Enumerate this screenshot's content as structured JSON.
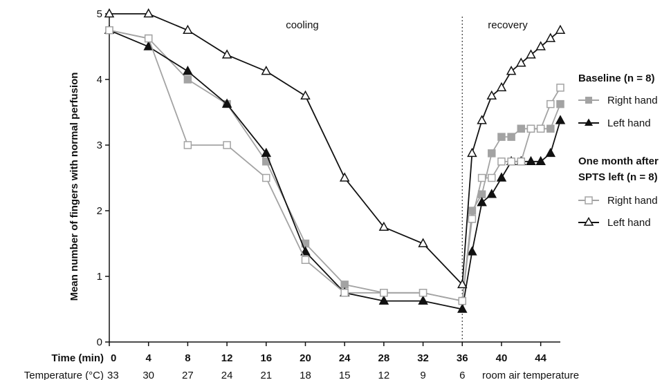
{
  "chart_data": {
    "type": "line",
    "ylabel": "Mean number of fingers with normal perfusion",
    "xlabel": "Time (min)",
    "temperature_row_label": "Temperature (°C)",
    "ylim": [
      0,
      5
    ],
    "yticks": [
      0,
      1,
      2,
      3,
      4,
      5
    ],
    "xticks": [
      0,
      4,
      8,
      12,
      16,
      20,
      24,
      28,
      32,
      36,
      40,
      44
    ],
    "temperature_ticks": [
      {
        "x": 0,
        "label": "33"
      },
      {
        "x": 4,
        "label": "30"
      },
      {
        "x": 8,
        "label": "27"
      },
      {
        "x": 12,
        "label": "24"
      },
      {
        "x": 16,
        "label": "21"
      },
      {
        "x": 20,
        "label": "18"
      },
      {
        "x": 24,
        "label": "15"
      },
      {
        "x": 28,
        "label": "12"
      },
      {
        "x": 32,
        "label": "9"
      },
      {
        "x": 36,
        "label": "6"
      }
    ],
    "temperature_recovery_label": "room air temperature",
    "phase_labels": {
      "cooling": "cooling",
      "recovery": "recovery"
    },
    "phase_divider_x": 36,
    "legend": {
      "group1_title": "Baseline (n = 8)",
      "group2_title_line1": "One month after",
      "group2_title_line2": "SPTS left (n = 8)",
      "right_hand": "Right hand",
      "left_hand": "Left hand"
    },
    "colors": {
      "gray": "#a3a3a3",
      "black": "#111111"
    },
    "series": [
      {
        "name": "Right hand",
        "group": "Baseline",
        "marker": "square-filled",
        "color": "#a3a3a3",
        "x": [
          0,
          4,
          8,
          12,
          16,
          20,
          24,
          28,
          32,
          36,
          37,
          38,
          39,
          40,
          41,
          42,
          43,
          44,
          45,
          46
        ],
        "y": [
          4.75,
          4.625,
          4.0,
          3.625,
          2.75,
          1.5,
          0.875,
          0.75,
          0.75,
          0.625,
          2.0,
          2.25,
          2.875,
          3.125,
          3.125,
          3.25,
          3.25,
          3.25,
          3.25,
          3.625
        ]
      },
      {
        "name": "Left hand",
        "group": "Baseline",
        "marker": "triangle-filled",
        "color": "#111111",
        "x": [
          0,
          4,
          8,
          12,
          16,
          20,
          24,
          28,
          32,
          36,
          37,
          38,
          39,
          40,
          41,
          42,
          43,
          44,
          45,
          46
        ],
        "y": [
          4.75,
          4.5,
          4.125,
          3.625,
          2.875,
          1.375,
          0.75,
          0.625,
          0.625,
          0.5,
          1.375,
          2.125,
          2.25,
          2.5,
          2.75,
          2.75,
          2.75,
          2.75,
          2.875,
          3.375
        ]
      },
      {
        "name": "Right hand",
        "group": "One month after SPTS left",
        "marker": "square-open",
        "color": "#a3a3a3",
        "x": [
          0,
          4,
          8,
          12,
          16,
          20,
          24,
          28,
          32,
          36,
          37,
          38,
          39,
          40,
          41,
          42,
          43,
          44,
          45,
          46
        ],
        "y": [
          4.75,
          4.625,
          3.0,
          3.0,
          2.5,
          1.25,
          0.75,
          0.75,
          0.75,
          0.625,
          1.875,
          2.5,
          2.5,
          2.75,
          2.75,
          2.75,
          3.25,
          3.25,
          3.625,
          3.875
        ]
      },
      {
        "name": "Left hand",
        "group": "One month after SPTS left",
        "marker": "triangle-open",
        "color": "#111111",
        "x": [
          0,
          4,
          8,
          12,
          16,
          20,
          24,
          28,
          32,
          36,
          37,
          38,
          39,
          40,
          41,
          42,
          43,
          44,
          45,
          46
        ],
        "y": [
          5.0,
          5.0,
          4.75,
          4.375,
          4.125,
          3.75,
          2.5,
          1.75,
          1.5,
          0.875,
          2.875,
          3.375,
          3.75,
          3.875,
          4.125,
          4.25,
          4.375,
          4.5,
          4.625,
          4.75
        ]
      }
    ]
  }
}
